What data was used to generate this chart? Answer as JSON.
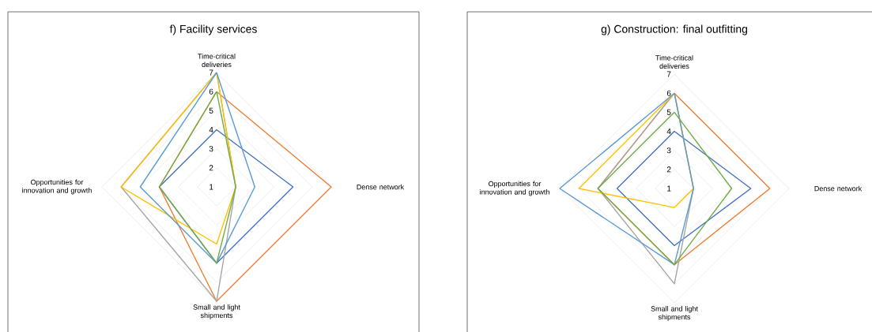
{
  "chart_data": [
    {
      "type": "radar",
      "title": "f) Facility services",
      "categories": [
        "Time-critical deliveries",
        "Dense network",
        "Small and light shipments",
        "Opportunities for innovation and growth"
      ],
      "ylim": [
        1,
        7
      ],
      "yticks": [
        1,
        2,
        3,
        4,
        5,
        6,
        7
      ],
      "grid": true,
      "series": [
        {
          "color": "#4472c4",
          "values": [
            4,
            5,
            5,
            4
          ]
        },
        {
          "color": "#ed7d31",
          "values": [
            6,
            7,
            7,
            4
          ]
        },
        {
          "color": "#a5a5a5",
          "values": [
            7,
            2,
            7,
            6
          ]
        },
        {
          "color": "#ffc000",
          "values": [
            7,
            2,
            4,
            6
          ]
        },
        {
          "color": "#5b9bd5",
          "values": [
            7,
            3,
            5,
            5
          ]
        },
        {
          "color": "#70ad47",
          "values": [
            6,
            2,
            5,
            4
          ]
        }
      ]
    },
    {
      "type": "radar",
      "title": "g) Construction: final outfitting",
      "categories": [
        "Time-critical deliveries",
        "Dense network",
        "Small and light shipments",
        "Opportunities for innovation and growth"
      ],
      "ylim": [
        1,
        7
      ],
      "yticks": [
        1,
        2,
        3,
        4,
        5,
        6,
        7
      ],
      "grid": true,
      "series": [
        {
          "color": "#4472c4",
          "values": [
            4,
            5,
            4,
            4
          ]
        },
        {
          "color": "#ed7d31",
          "values": [
            6,
            6,
            5,
            5
          ]
        },
        {
          "color": "#a5a5a5",
          "values": [
            6,
            2,
            6,
            5
          ]
        },
        {
          "color": "#ffc000",
          "values": [
            6,
            2,
            2,
            6
          ]
        },
        {
          "color": "#5b9bd5",
          "values": [
            6,
            2,
            5,
            7
          ]
        },
        {
          "color": "#70ad47",
          "values": [
            5,
            4,
            5,
            5
          ]
        }
      ]
    }
  ]
}
